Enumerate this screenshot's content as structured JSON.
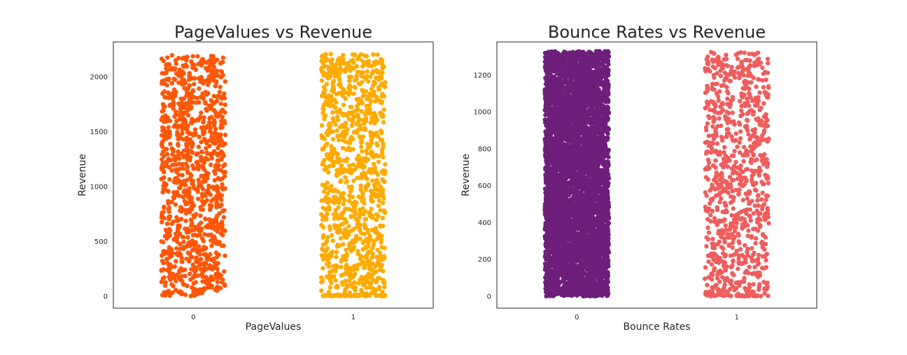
{
  "chart_data": [
    {
      "type": "scatter",
      "subtype": "strip",
      "title": "PageValues vs Revenue",
      "xlabel": "PageValues",
      "ylabel": "Revenue",
      "categories": [
        "0",
        "1"
      ],
      "yticks": [
        "0",
        "500",
        "1000",
        "1500",
        "2000"
      ],
      "ylim": [
        -110,
        2320
      ],
      "colors": [
        "#ff5608",
        "#ffab00"
      ],
      "series": [
        {
          "category": "0",
          "n_points": 1100,
          "y_range": [
            0,
            2200
          ],
          "dense_near_zero": false
        },
        {
          "category": "1",
          "n_points": 1100,
          "y_range": [
            0,
            2210
          ],
          "dense_near_zero": true
        }
      ],
      "grid": false,
      "legend": "none"
    },
    {
      "type": "scatter",
      "subtype": "strip",
      "title": "Bounce Rates vs Revenue",
      "xlabel": "Bounce Rates",
      "ylabel": "Revenue",
      "categories": [
        "0",
        "1"
      ],
      "yticks": [
        "0",
        "200",
        "400",
        "600",
        "800",
        "1000",
        "1200"
      ],
      "ylim": [
        -65,
        1380
      ],
      "colors": [
        "#6d1f7a",
        "#ef5d5d"
      ],
      "series": [
        {
          "category": "0",
          "n_points": 5000,
          "y_range": [
            0,
            1330
          ],
          "dense_near_zero": false
        },
        {
          "category": "1",
          "n_points": 900,
          "y_range": [
            0,
            1330
          ],
          "dense_near_zero": true
        }
      ],
      "grid": false,
      "legend": "none"
    }
  ]
}
